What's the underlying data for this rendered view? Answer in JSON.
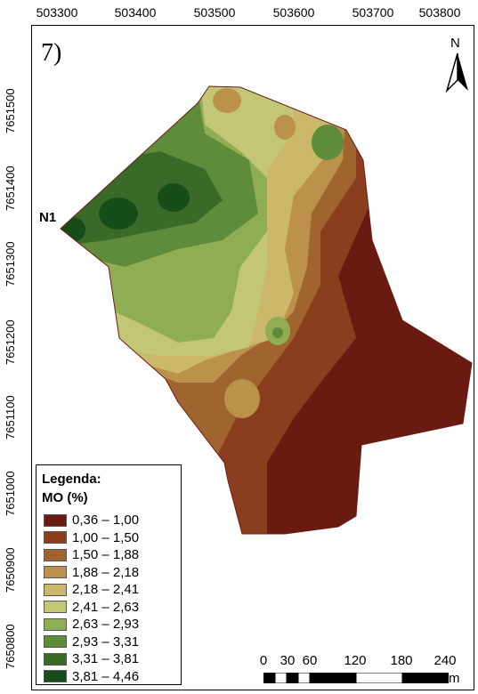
{
  "panel_label": "7)",
  "point_label": "N1",
  "north_label": "N",
  "x_ticks": [
    "503300",
    "503400",
    "503500",
    "503600",
    "503700",
    "503800"
  ],
  "y_ticks": [
    "7651500",
    "7651400",
    "7651300",
    "7651200",
    "7651100",
    "7651000",
    "7650900",
    "7650800"
  ],
  "legend": {
    "title": "Legenda:",
    "subtitle": "MO (%)",
    "items": [
      {
        "label": "0,36 – 1,00",
        "color": "#6b1a12"
      },
      {
        "label": "1,00 – 1,50",
        "color": "#8a3e1e"
      },
      {
        "label": "1,50 – 1,88",
        "color": "#a0652f"
      },
      {
        "label": "1,88 – 2,18",
        "color": "#bb914c"
      },
      {
        "label": "2,18 – 2,41",
        "color": "#cbb86a"
      },
      {
        "label": "2,41 – 2,63",
        "color": "#c3c675"
      },
      {
        "label": "2,63 – 2,93",
        "color": "#8fae54"
      },
      {
        "label": "2,93 – 3,31",
        "color": "#5f8c3a"
      },
      {
        "label": "3,31 – 3,81",
        "color": "#3a6a28"
      },
      {
        "label": "3,81 – 4,46",
        "color": "#174d18"
      }
    ]
  },
  "scale": {
    "labels": [
      "0",
      "30",
      "60",
      "120",
      "180",
      "240"
    ],
    "unit": "m"
  }
}
